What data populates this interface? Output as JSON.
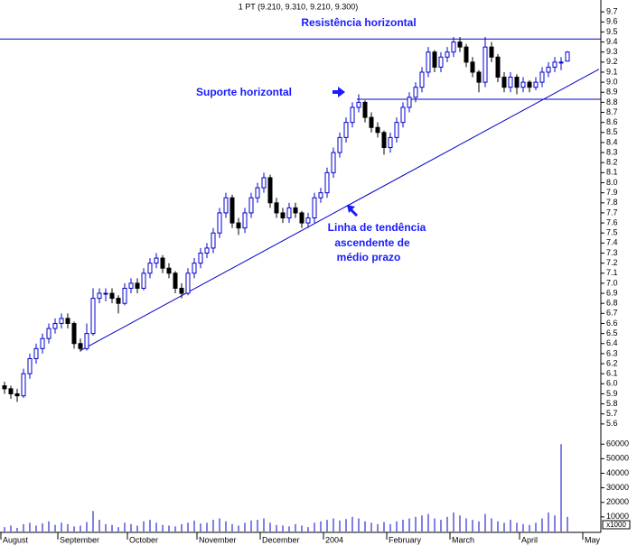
{
  "chart_data": {
    "type": "candlestick",
    "title": "1 PT (9.210, 9.310, 9.210, 9.300)",
    "categories": [
      "August",
      null,
      null,
      null,
      null,
      null,
      null,
      null,
      null,
      "September",
      null,
      null,
      null,
      null,
      null,
      null,
      null,
      null,
      null,
      null,
      "October",
      null,
      null,
      null,
      null,
      null,
      null,
      null,
      null,
      null,
      null,
      "November",
      null,
      null,
      null,
      null,
      null,
      null,
      null,
      null,
      null,
      "December",
      null,
      null,
      null,
      null,
      null,
      null,
      null,
      null,
      null,
      "2004",
      null,
      null,
      null,
      null,
      null,
      null,
      null,
      null,
      null,
      "February",
      null,
      null,
      null,
      null,
      null,
      null,
      null,
      null,
      null,
      "March",
      null,
      null,
      null,
      null,
      null,
      null,
      null,
      null,
      null,
      null,
      "April",
      null,
      null,
      null,
      null,
      null,
      null,
      null,
      null,
      null,
      "May"
    ],
    "open": [
      5.98,
      5.95,
      5.9,
      5.88,
      6.1,
      6.25,
      6.35,
      6.45,
      6.55,
      6.6,
      6.65,
      6.6,
      6.4,
      6.35,
      6.5,
      6.85,
      6.9,
      6.9,
      6.85,
      6.8,
      6.95,
      7.0,
      6.95,
      7.1,
      7.2,
      7.25,
      7.15,
      7.1,
      6.95,
      6.9,
      7.1,
      7.2,
      7.3,
      7.35,
      7.5,
      7.7,
      7.85,
      7.6,
      7.55,
      7.7,
      7.85,
      7.95,
      8.05,
      7.8,
      7.7,
      7.65,
      7.75,
      7.7,
      7.6,
      7.65,
      7.85,
      7.9,
      8.1,
      8.3,
      8.45,
      8.6,
      8.75,
      8.8,
      8.65,
      8.55,
      8.5,
      8.35,
      8.45,
      8.6,
      8.75,
      8.85,
      8.95,
      9.1,
      9.3,
      9.15,
      9.25,
      9.3,
      9.4,
      9.35,
      9.2,
      9.1,
      9.0,
      9.35,
      9.25,
      9.05,
      8.95,
      9.05,
      8.95,
      9.0,
      8.95,
      9.0,
      9.1,
      9.15,
      9.2,
      9.21,
      null,
      null,
      null
    ],
    "high": [
      6.02,
      5.98,
      5.95,
      6.15,
      6.3,
      6.4,
      6.5,
      6.6,
      6.65,
      6.7,
      6.7,
      6.62,
      6.45,
      6.6,
      6.95,
      6.95,
      6.95,
      6.95,
      6.88,
      7.0,
      7.05,
      7.05,
      7.15,
      7.25,
      7.3,
      7.28,
      7.2,
      7.12,
      7.0,
      7.15,
      7.25,
      7.35,
      7.4,
      7.55,
      7.75,
      7.9,
      7.88,
      7.65,
      7.75,
      7.9,
      8.0,
      8.1,
      8.08,
      7.85,
      7.75,
      7.8,
      7.8,
      7.72,
      7.7,
      7.9,
      7.95,
      8.15,
      8.35,
      8.5,
      8.65,
      8.8,
      8.88,
      8.82,
      8.7,
      8.6,
      8.52,
      8.5,
      8.65,
      8.8,
      8.9,
      9.0,
      9.15,
      9.35,
      9.32,
      9.3,
      9.35,
      9.45,
      9.45,
      9.38,
      9.25,
      9.12,
      9.45,
      9.4,
      9.28,
      9.1,
      9.1,
      9.08,
      9.05,
      9.02,
      9.05,
      9.15,
      9.2,
      9.25,
      9.25,
      9.31,
      null,
      null,
      null
    ],
    "low": [
      5.9,
      5.85,
      5.82,
      5.86,
      6.05,
      6.2,
      6.3,
      6.4,
      6.5,
      6.55,
      6.55,
      6.35,
      6.32,
      6.33,
      6.48,
      6.8,
      6.82,
      6.8,
      6.7,
      6.78,
      6.9,
      6.9,
      6.93,
      7.05,
      7.15,
      7.1,
      7.05,
      6.9,
      6.85,
      6.88,
      7.05,
      7.15,
      7.25,
      7.3,
      7.45,
      7.65,
      7.55,
      7.48,
      7.5,
      7.65,
      7.8,
      7.9,
      7.75,
      7.65,
      7.6,
      7.6,
      7.65,
      7.55,
      7.55,
      7.6,
      7.8,
      7.85,
      8.05,
      8.25,
      8.4,
      8.55,
      8.7,
      8.6,
      8.5,
      8.45,
      8.28,
      8.3,
      8.4,
      8.55,
      8.7,
      8.8,
      8.9,
      9.05,
      9.1,
      9.1,
      9.2,
      9.25,
      9.3,
      9.15,
      9.05,
      8.9,
      8.95,
      9.2,
      9.0,
      8.9,
      8.9,
      8.88,
      8.9,
      8.9,
      8.92,
      8.95,
      9.05,
      9.1,
      9.12,
      9.21,
      null,
      null,
      null
    ],
    "close": [
      5.95,
      5.9,
      5.88,
      6.1,
      6.25,
      6.35,
      6.45,
      6.55,
      6.6,
      6.65,
      6.6,
      6.4,
      6.35,
      6.5,
      6.85,
      6.9,
      6.9,
      6.85,
      6.8,
      6.95,
      7.0,
      6.95,
      7.1,
      7.2,
      7.25,
      7.15,
      7.1,
      6.95,
      6.9,
      7.1,
      7.2,
      7.3,
      7.35,
      7.5,
      7.7,
      7.85,
      7.6,
      7.55,
      7.7,
      7.85,
      7.95,
      8.05,
      7.8,
      7.7,
      7.65,
      7.75,
      7.7,
      7.6,
      7.65,
      7.85,
      7.9,
      8.1,
      8.3,
      8.45,
      8.6,
      8.75,
      8.8,
      8.65,
      8.55,
      8.5,
      8.35,
      8.45,
      8.6,
      8.75,
      8.85,
      8.95,
      9.1,
      9.3,
      9.15,
      9.25,
      9.3,
      9.4,
      9.35,
      9.2,
      9.1,
      9.0,
      9.35,
      9.25,
      9.05,
      8.95,
      9.05,
      8.95,
      9.0,
      8.95,
      9.0,
      9.1,
      9.15,
      9.2,
      9.2,
      9.3,
      null,
      null,
      null
    ],
    "volume": [
      3000,
      4000,
      2500,
      5000,
      6000,
      4000,
      5500,
      7000,
      4500,
      6000,
      5000,
      3500,
      4000,
      6500,
      14000,
      8000,
      5000,
      4500,
      3000,
      6000,
      5000,
      4000,
      7000,
      8000,
      6000,
      4500,
      4000,
      3500,
      5000,
      6000,
      7500,
      5500,
      6000,
      8000,
      9000,
      7000,
      5000,
      4000,
      6000,
      7500,
      8000,
      9000,
      6000,
      4500,
      4000,
      3500,
      5000,
      4000,
      3000,
      6000,
      7000,
      8000,
      9000,
      7500,
      8500,
      10000,
      9000,
      7000,
      6000,
      5000,
      6500,
      5000,
      7000,
      8000,
      9000,
      10000,
      11000,
      12000,
      9000,
      8000,
      10000,
      13000,
      11000,
      9000,
      8000,
      7000,
      12000,
      9000,
      7000,
      6000,
      8000,
      6000,
      5000,
      4500,
      6000,
      9000,
      13000,
      11000,
      60000,
      10000,
      null,
      null,
      null
    ],
    "up_color": "#0000cc",
    "down_color": "#000000",
    "ylim": [
      5.5,
      9.8
    ],
    "yticks": [
      5.6,
      5.7,
      5.8,
      5.9,
      {
        "value": 6,
        "label": "6.0"
      },
      6.1,
      6.2,
      6.3,
      6.4,
      6.5,
      6.6,
      6.7,
      6.8,
      6.9,
      {
        "value": 7,
        "label": "7.0"
      },
      7.1,
      7.2,
      7.3,
      7.4,
      7.5,
      7.6,
      7.7,
      7.8,
      7.9,
      {
        "value": 8,
        "label": "8.0"
      },
      8.1,
      8.2,
      8.3,
      8.4,
      8.5,
      8.6,
      8.7,
      8.8,
      8.9,
      {
        "value": 9,
        "label": "9.0"
      },
      9.1,
      9.2,
      9.3,
      9.4,
      9.5,
      9.6,
      9.7
    ],
    "y2lim": [
      0,
      62000
    ],
    "y2ticks": [
      10000,
      20000,
      30000,
      40000,
      50000,
      60000
    ],
    "volume_unit": "x1000",
    "resistance": 9.43,
    "support": 8.83,
    "trendline": {
      "x": [
        12,
        94
      ],
      "y": [
        6.33,
        9.13
      ]
    },
    "line_color": "#0000cc",
    "annotations": {
      "resistance": "Resistência horizontal",
      "support": "Suporte horizontal",
      "trend": [
        "Linha de tendência",
        "ascendente de",
        "médio prazo"
      ]
    }
  }
}
